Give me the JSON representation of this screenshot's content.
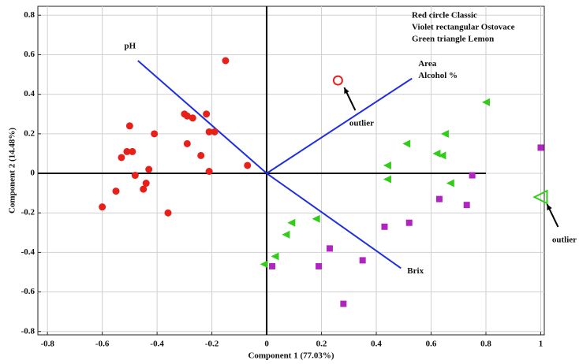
{
  "chart_data": {
    "type": "scatter",
    "xlabel": "Component 1 (77.03%)",
    "ylabel": "Component 2 (14.48%)",
    "xlim": [
      -0.835,
      1.013
    ],
    "ylim": [
      -0.817,
      0.845
    ],
    "xticks": [
      -0.8,
      -0.6,
      -0.4,
      -0.2,
      0,
      0.2,
      0.4,
      0.6,
      0.8,
      1
    ],
    "yticks": [
      -0.8,
      -0.6,
      -0.4,
      -0.2,
      0,
      0.2,
      0.4,
      0.6,
      0.8
    ],
    "grid": true,
    "series": [
      {
        "name": "Red circle Classic",
        "color": "#e8201a",
        "marker": "circle",
        "x": [
          -0.15,
          -0.29,
          -0.3,
          -0.27,
          -0.22,
          -0.19,
          -0.21,
          -0.24,
          -0.29,
          -0.21,
          -0.07,
          -0.5,
          -0.41,
          -0.51,
          -0.49,
          -0.53,
          -0.43,
          -0.48,
          -0.44,
          -0.45,
          -0.55,
          -0.6,
          -0.36
        ],
        "y": [
          0.57,
          0.29,
          0.3,
          0.28,
          0.3,
          0.21,
          0.21,
          0.09,
          0.15,
          0.01,
          0.04,
          0.24,
          0.2,
          0.11,
          0.11,
          0.08,
          0.02,
          -0.01,
          -0.05,
          -0.08,
          -0.09,
          -0.17,
          -0.2
        ],
        "outlier": {
          "x": 0.26,
          "y": 0.47,
          "label": "outlier"
        }
      },
      {
        "name": "Violet rectangular Ostovace",
        "color": "#b025c0",
        "marker": "square",
        "x": [
          1.0,
          0.75,
          0.63,
          0.73,
          0.43,
          0.52,
          0.23,
          0.35,
          0.19,
          0.02,
          0.28
        ],
        "y": [
          0.13,
          -0.01,
          -0.13,
          -0.16,
          -0.27,
          -0.25,
          -0.38,
          -0.44,
          -0.47,
          -0.47,
          -0.66
        ]
      },
      {
        "name": "Green triangle Lemon",
        "color": "#33cc1a",
        "marker": "triangle-left",
        "x": [
          0.8,
          0.65,
          0.51,
          0.62,
          0.64,
          0.44,
          0.67,
          0.44,
          0.18,
          0.09,
          0.07,
          0.03,
          -0.01
        ],
        "y": [
          0.36,
          0.2,
          0.15,
          0.1,
          0.09,
          0.04,
          -0.05,
          -0.03,
          -0.23,
          -0.25,
          -0.31,
          -0.42,
          -0.46
        ],
        "outlier": {
          "x": 1.0,
          "y": -0.12,
          "label": "outlier"
        }
      }
    ],
    "vectors_color": "#1f2fe0",
    "vectors": [
      {
        "labels": [
          "pH"
        ],
        "x": -0.47,
        "y": 0.57
      },
      {
        "labels": [
          "Area",
          "Alcohol %"
        ],
        "x": 0.53,
        "y": 0.48
      },
      {
        "labels": [
          "Brix"
        ],
        "x": 0.49,
        "y": -0.48
      }
    ]
  }
}
